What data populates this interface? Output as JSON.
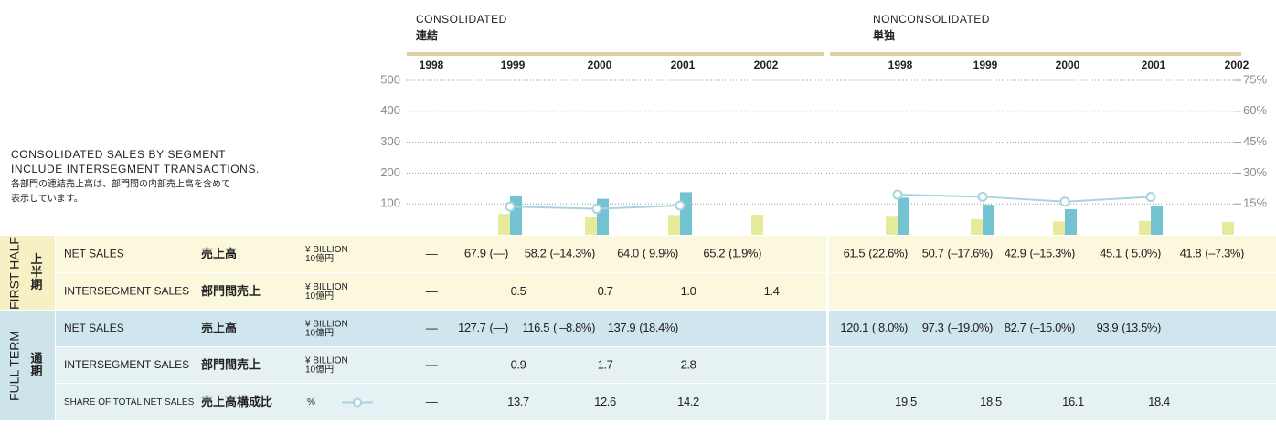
{
  "note": [
    "CONSOLIDATED SALES BY SEGMENT",
    "INCLUDE INTERSEGMENT TRANSACTIONS.",
    "各部門の連結売上高は、部門間の内部売上高を含めて",
    "表示しています。"
  ],
  "groups": [
    {
      "label": "FIRST HALF",
      "label_ja": "上半期",
      "color": "#f7f0c4",
      "rows": [
        {
          "name": "NET SALES",
          "name_ja": "売上高",
          "unit": "¥ BILLION",
          "unit_ja": "10億円",
          "bg": "#fcf8dd"
        },
        {
          "name": "INTERSEGMENT SALES",
          "name_ja": "部門間売上",
          "unit": "¥ BILLION",
          "unit_ja": "10億円",
          "bg": "#fcf8dd"
        }
      ]
    },
    {
      "label": "FULL TERM",
      "label_ja": "通期",
      "color": "#cde4eb",
      "rows": [
        {
          "name": "NET SALES",
          "name_ja": "売上高",
          "unit": "¥ BILLION",
          "unit_ja": "10億円",
          "bg": "#cfe6ee"
        },
        {
          "name": "INTERSEGMENT SALES",
          "name_ja": "部門間売上",
          "unit": "¥ BILLION",
          "unit_ja": "10億円",
          "bg": "#e6f1f4"
        },
        {
          "name": "SHARE OF TOTAL NET SALES",
          "name_ja": "売上高構成比",
          "unit": "%",
          "bg": "#e6f1f4"
        }
      ]
    }
  ],
  "chart_data": [
    {
      "type": "bar",
      "title": "CONSOLIDATED",
      "title_ja": "連結",
      "categories": [
        "1998",
        "1999",
        "2000",
        "2001",
        "2002"
      ],
      "ylim": [
        0,
        500
      ],
      "yticks": [
        100,
        200,
        300,
        400,
        500
      ],
      "y2lim": [
        0,
        75
      ],
      "grid": true,
      "series": [
        {
          "type": "bar",
          "color": "#e6eb9b",
          "values": [
            null,
            67.9,
            58.2,
            64.0,
            65.2
          ],
          "value_labels": [
            "—",
            "67.9",
            "58.2",
            "64.0",
            "65.2"
          ],
          "changes": [
            null,
            "(—)",
            "(–14.3%)",
            "( 9.9%)",
            "(1.9%)"
          ]
        },
        {
          "values": [
            null,
            0.5,
            0.7,
            1.0,
            1.4
          ],
          "value_labels": [
            "—",
            "0.5",
            "0.7",
            "1.0",
            "1.4"
          ]
        },
        {
          "type": "bar",
          "color": "#74c3d3",
          "values": [
            null,
            127.7,
            116.5,
            137.9,
            null
          ],
          "value_labels": [
            "—",
            "127.7",
            "116.5",
            "137.9",
            null
          ],
          "changes": [
            null,
            "(—)",
            "( –8.8%)",
            "(18.4%)",
            null
          ]
        },
        {
          "values": [
            null,
            0.9,
            1.7,
            2.8,
            null
          ],
          "value_labels": [
            "—",
            "0.9",
            "1.7",
            "2.8",
            null
          ]
        },
        {
          "type": "line",
          "axis": "y2",
          "color": "#a8d4df",
          "values": [
            null,
            13.7,
            12.6,
            14.2,
            null
          ],
          "value_labels": [
            "—",
            "13.7",
            "12.6",
            "14.2",
            null
          ]
        }
      ]
    },
    {
      "type": "bar",
      "title": "NONCONSOLIDATED",
      "title_ja": "単独",
      "categories": [
        "1998",
        "1999",
        "2000",
        "2001",
        "2002"
      ],
      "ylim": [
        0,
        500
      ],
      "y2lim": [
        0,
        75
      ],
      "y2ticks": [
        {
          "value": 15,
          "label": "15%"
        },
        {
          "value": 30,
          "label": "30%"
        },
        {
          "value": 45,
          "label": "45%"
        },
        {
          "value": 60,
          "label": "60%"
        },
        {
          "value": 75,
          "label": "75%"
        }
      ],
      "series": [
        {
          "type": "bar",
          "color": "#e6eb9b",
          "values": [
            61.5,
            50.7,
            42.9,
            45.1,
            41.8
          ],
          "value_labels": [
            "61.5",
            "50.7",
            "42.9",
            "45.1",
            "41.8"
          ],
          "changes": [
            "(22.6%)",
            "(–17.6%)",
            "(–15.3%)",
            "( 5.0%)",
            "(–7.3%)"
          ]
        },
        {
          "values": [
            null,
            null,
            null,
            null,
            null
          ]
        },
        {
          "type": "bar",
          "color": "#74c3d3",
          "values": [
            120.1,
            97.3,
            82.7,
            93.9,
            null
          ],
          "value_labels": [
            "120.1",
            "97.3",
            "82.7",
            "93.9",
            null
          ],
          "changes": [
            "( 8.0%)",
            "(–19.0%)",
            "(–15.0%)",
            "(13.5%)",
            null
          ]
        },
        {
          "values": [
            null,
            null,
            null,
            null,
            null
          ]
        },
        {
          "type": "line",
          "axis": "y2",
          "color": "#a8d4df",
          "values": [
            19.5,
            18.5,
            16.1,
            18.4,
            null
          ],
          "value_labels": [
            "19.5",
            "18.5",
            "16.1",
            "18.4",
            null
          ]
        }
      ]
    }
  ]
}
